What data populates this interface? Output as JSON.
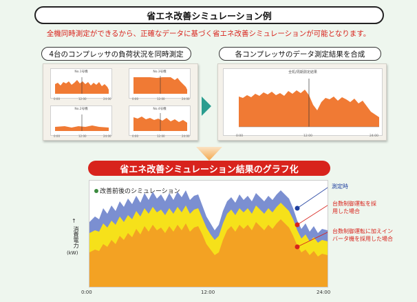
{
  "header": {
    "title": "省エネ改善シミュレーション例",
    "subtitle": "全機同時測定ができるから、正確なデータに基づく省エネ改善シミュレーションが可能となります。"
  },
  "left_section": {
    "title": "4台のコンプレッサの負荷状況を同時測定",
    "charts": [
      {
        "label": "No.1号機",
        "ticks": [
          "0:00",
          "12:00",
          "24:00"
        ]
      },
      {
        "label": "No.3号機",
        "ticks": [
          "0:00",
          "12:00",
          "24:00"
        ]
      },
      {
        "label": "No.2号機",
        "ticks": [
          "0:00",
          "12:00",
          "24:00"
        ]
      },
      {
        "label": "No.4号機",
        "ticks": [
          "0:00",
          "12:00",
          "24:00"
        ]
      }
    ]
  },
  "right_section": {
    "title": "各コンプレッサのデータ測定結果を合成",
    "chart_label": "全机/周期測定結果",
    "ticks": [
      "0:00",
      "12:00",
      "24:00"
    ]
  },
  "result": {
    "title": "省エネ改善シミュレーション結果のグラフ化",
    "legend_title": "改善前後のシミュレーション",
    "ylabel": "消費電力",
    "yunit": "(kW)",
    "xticks": [
      "0:00",
      "12:00",
      "24:00"
    ],
    "annotations": {
      "measured": "測定時",
      "multi_unit": "台数制御運転を採用した場合",
      "multi_unit_inverter": "台数制御運転に加えインバータ機を採用した場合"
    }
  },
  "colors": {
    "accent_red": "#d8231c",
    "orange": "#f3a223",
    "yellow": "#f6e11a",
    "blue": "#7b8fd1",
    "mini_orange": "#f07a34",
    "teal_arrow": "#2a9d8f"
  }
}
